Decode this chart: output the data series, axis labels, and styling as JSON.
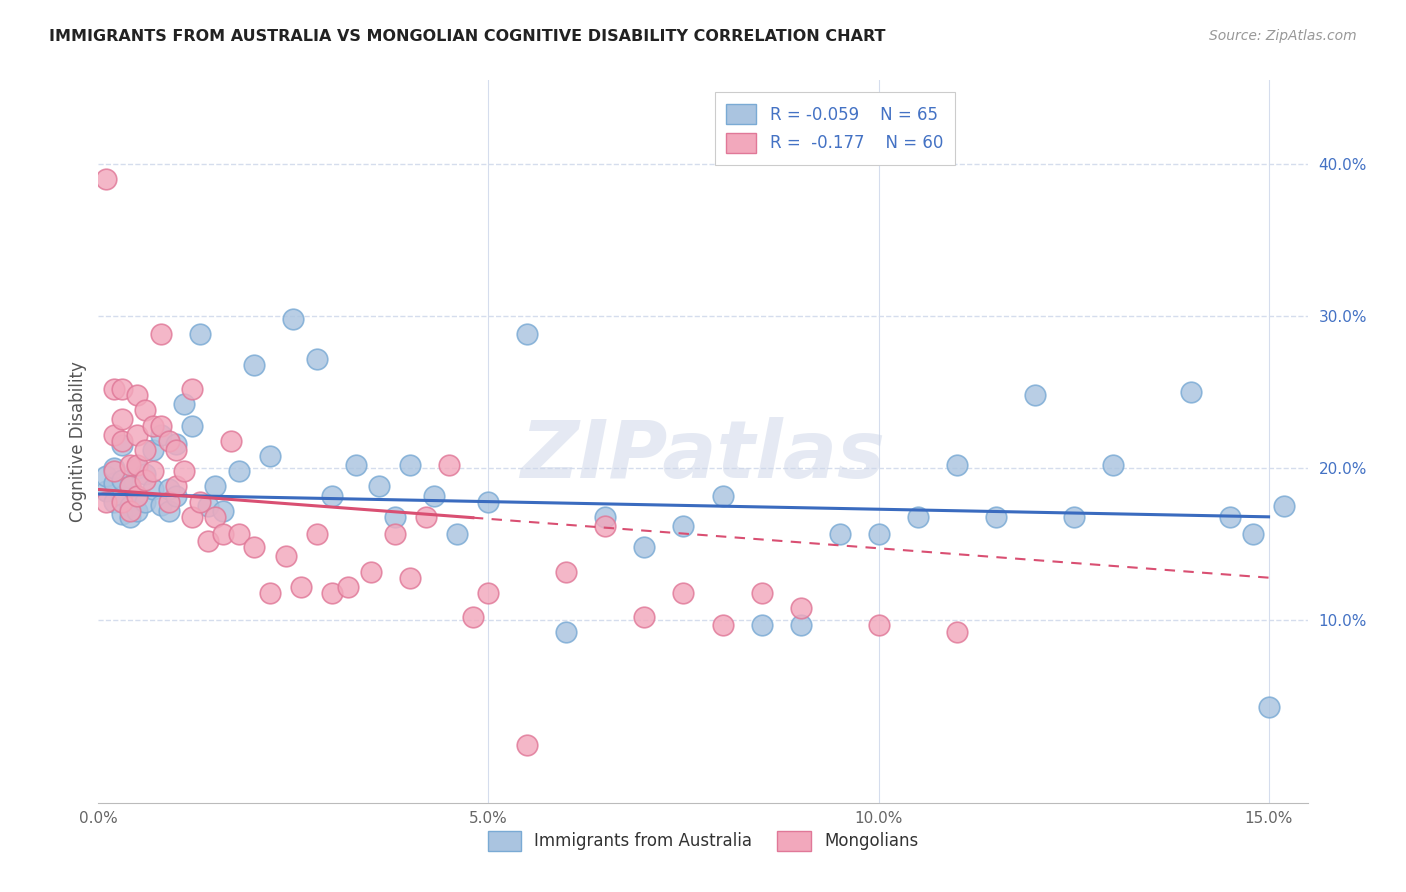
{
  "title": "IMMIGRANTS FROM AUSTRALIA VS MONGOLIAN COGNITIVE DISABILITY CORRELATION CHART",
  "source": "Source: ZipAtlas.com",
  "ylabel": "Cognitive Disability",
  "xlim": [
    0.0,
    0.155
  ],
  "ylim": [
    -0.02,
    0.455
  ],
  "xticks": [
    0.0,
    0.05,
    0.1,
    0.15
  ],
  "xtick_labels": [
    "0.0%",
    "5.0%",
    "10.0%",
    "15.0%"
  ],
  "yticks_right": [
    0.1,
    0.2,
    0.3,
    0.4
  ],
  "ytick_labels_right": [
    "10.0%",
    "20.0%",
    "30.0%",
    "40.0%"
  ],
  "series1_color": "#aac4e0",
  "series2_color": "#f2a8bc",
  "series1_edge": "#7aaad4",
  "series2_edge": "#e07898",
  "trend1_color": "#3a6bbf",
  "trend2_color": "#d94f72",
  "label1": "Immigrants from Australia",
  "label2": "Mongolians",
  "watermark": "ZIPatlas",
  "background_color": "#ffffff",
  "grid_color": "#d5dded",
  "legend_R1": "-0.059",
  "legend_N1": "65",
  "legend_R2": "-0.177",
  "legend_N2": "60",
  "trend1_x0": 0.0,
  "trend1_y0": 0.183,
  "trend1_x1": 0.15,
  "trend1_y1": 0.168,
  "trend2_x0": 0.0,
  "trend2_y0": 0.186,
  "trend2_x1": 0.15,
  "trend2_y1": 0.128,
  "trend2_solid_end": 0.048,
  "series1_x": [
    0.001,
    0.001,
    0.002,
    0.002,
    0.002,
    0.003,
    0.003,
    0.003,
    0.003,
    0.004,
    0.004,
    0.004,
    0.005,
    0.005,
    0.005,
    0.006,
    0.006,
    0.007,
    0.007,
    0.008,
    0.008,
    0.009,
    0.009,
    0.01,
    0.01,
    0.011,
    0.012,
    0.013,
    0.014,
    0.015,
    0.016,
    0.018,
    0.02,
    0.022,
    0.025,
    0.028,
    0.03,
    0.033,
    0.036,
    0.038,
    0.04,
    0.043,
    0.046,
    0.05,
    0.055,
    0.06,
    0.065,
    0.07,
    0.075,
    0.08,
    0.085,
    0.09,
    0.095,
    0.1,
    0.105,
    0.11,
    0.115,
    0.12,
    0.125,
    0.13,
    0.14,
    0.145,
    0.148,
    0.15,
    0.152
  ],
  "series1_y": [
    0.185,
    0.195,
    0.178,
    0.19,
    0.2,
    0.182,
    0.17,
    0.192,
    0.215,
    0.175,
    0.188,
    0.168,
    0.2,
    0.182,
    0.172,
    0.196,
    0.178,
    0.212,
    0.186,
    0.222,
    0.176,
    0.186,
    0.172,
    0.216,
    0.182,
    0.242,
    0.228,
    0.288,
    0.175,
    0.188,
    0.172,
    0.198,
    0.268,
    0.208,
    0.298,
    0.272,
    0.182,
    0.202,
    0.188,
    0.168,
    0.202,
    0.182,
    0.157,
    0.178,
    0.288,
    0.092,
    0.168,
    0.148,
    0.162,
    0.182,
    0.097,
    0.097,
    0.157,
    0.157,
    0.168,
    0.202,
    0.168,
    0.248,
    0.168,
    0.202,
    0.25,
    0.168,
    0.157,
    0.043,
    0.175
  ],
  "series2_x": [
    0.001,
    0.001,
    0.002,
    0.002,
    0.002,
    0.003,
    0.003,
    0.003,
    0.003,
    0.004,
    0.004,
    0.004,
    0.005,
    0.005,
    0.005,
    0.005,
    0.006,
    0.006,
    0.006,
    0.007,
    0.007,
    0.008,
    0.008,
    0.009,
    0.009,
    0.01,
    0.01,
    0.011,
    0.012,
    0.012,
    0.013,
    0.014,
    0.015,
    0.016,
    0.017,
    0.018,
    0.02,
    0.022,
    0.024,
    0.026,
    0.028,
    0.03,
    0.032,
    0.035,
    0.038,
    0.04,
    0.042,
    0.045,
    0.048,
    0.05,
    0.055,
    0.06,
    0.065,
    0.07,
    0.075,
    0.08,
    0.085,
    0.09,
    0.1,
    0.11
  ],
  "series2_y": [
    0.39,
    0.178,
    0.252,
    0.198,
    0.222,
    0.232,
    0.218,
    0.178,
    0.252,
    0.202,
    0.188,
    0.172,
    0.222,
    0.202,
    0.182,
    0.248,
    0.238,
    0.212,
    0.192,
    0.228,
    0.198,
    0.288,
    0.228,
    0.218,
    0.178,
    0.212,
    0.188,
    0.198,
    0.168,
    0.252,
    0.178,
    0.152,
    0.168,
    0.157,
    0.218,
    0.157,
    0.148,
    0.118,
    0.142,
    0.122,
    0.157,
    0.118,
    0.122,
    0.132,
    0.157,
    0.128,
    0.168,
    0.202,
    0.102,
    0.118,
    0.018,
    0.132,
    0.162,
    0.102,
    0.118,
    0.097,
    0.118,
    0.108,
    0.097,
    0.092
  ]
}
